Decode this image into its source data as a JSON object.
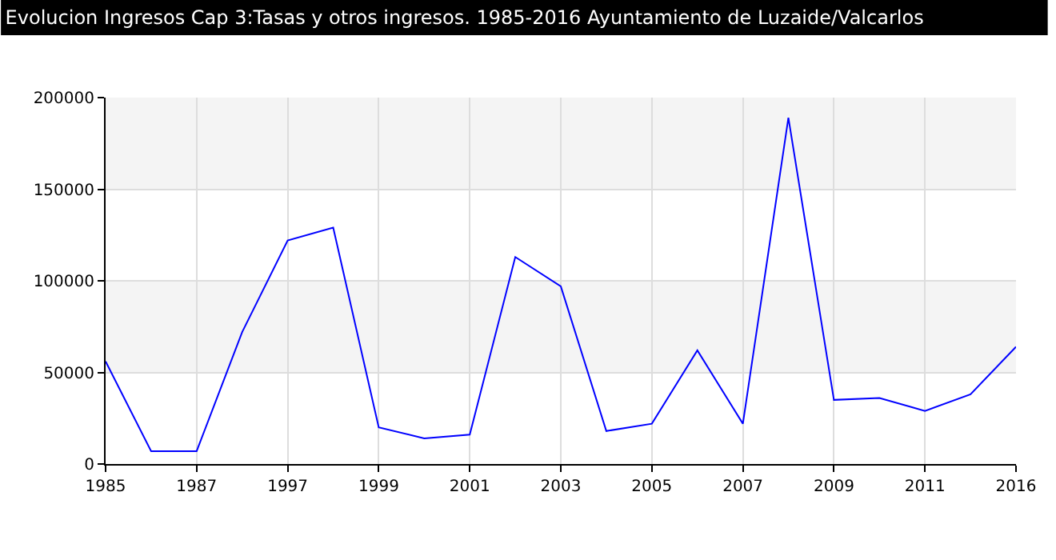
{
  "chart_data": {
    "type": "line",
    "title": "Evolucion Ingresos Cap 3:Tasas y otros ingresos. 1985-2016 Ayuntamiento de Luzaide/Valcarlos",
    "categories": [
      "1985",
      null,
      "1987",
      null,
      "1997",
      null,
      "1999",
      null,
      "2001",
      null,
      "2003",
      null,
      "2005",
      null,
      "2007",
      null,
      "2009",
      null,
      "2011",
      null,
      "2016"
    ],
    "series": [
      {
        "color": "#0000ff",
        "values": [
          56000,
          7000,
          7000,
          72000,
          122000,
          129000,
          20000,
          14000,
          16000,
          113000,
          97000,
          18000,
          22000,
          62000,
          22000,
          189000,
          35000,
          36000,
          29000,
          38000,
          64000
        ]
      }
    ],
    "ylim": [
      0,
      200000
    ],
    "yticks": [
      0,
      50000,
      100000,
      150000,
      200000
    ],
    "grid": true,
    "marker": "none",
    "line_style": "solid",
    "bands": [
      {
        "axis": "y",
        "from": 50000,
        "to": 100000,
        "color": "#f4f4f4"
      },
      {
        "axis": "y",
        "from": 150000,
        "to": 200000,
        "color": "#f4f4f4"
      }
    ]
  }
}
